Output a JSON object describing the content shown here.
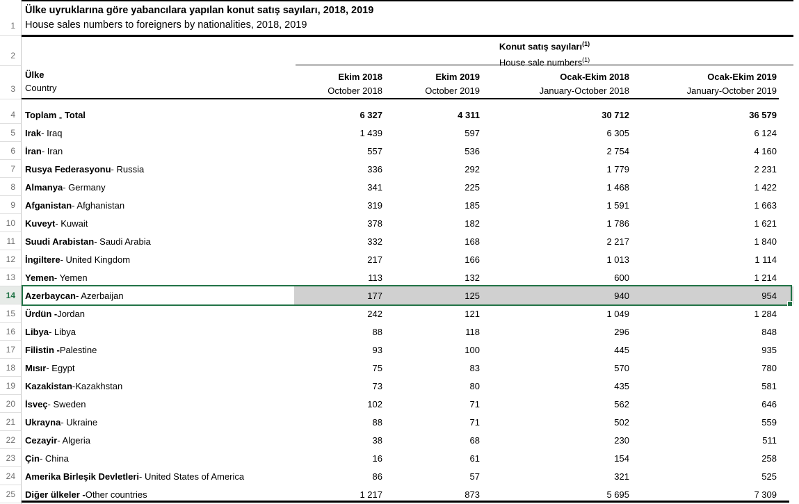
{
  "title": {
    "tr": "Ülke uyruklarına göre yabancılara yapılan konut satış sayıları, 2018, 2019",
    "en": "House sales numbers to foreigners by nationalities, 2018, 2019"
  },
  "group_header": {
    "tr": "Konut satış sayıları",
    "en": "House sale numbers",
    "footnote_marker": "(1)"
  },
  "row_header_col": {
    "tr": "Ülke",
    "en": "Country"
  },
  "columns": [
    {
      "tr": "Ekim 2018",
      "en": "October 2018"
    },
    {
      "tr": "Ekim 2019",
      "en": "October 2019"
    },
    {
      "tr": "Ocak-Ekim 2018",
      "en": "January-October 2018"
    },
    {
      "tr": "Ocak-Ekim 2019",
      "en": "January-October 2019"
    }
  ],
  "gutter_numbers": [
    "1",
    "2",
    "3",
    "4",
    "5",
    "6",
    "7",
    "8",
    "9",
    "10",
    "11",
    "12",
    "13",
    "14",
    "15",
    "16",
    "17",
    "18",
    "19",
    "20",
    "21",
    "22",
    "23",
    "24",
    "25"
  ],
  "selection": {
    "selected_row_number": "14",
    "border_color": "#217346",
    "fill_color": "#d0d0d0",
    "header_bg": "#e7ebe8"
  },
  "colors": {
    "rule_black": "#000000",
    "gutter_text": "#707070",
    "gutter_line": "#c9c9c9"
  },
  "rows": [
    {
      "n": "4",
      "tr": "Toplam",
      "sep": "-",
      "sep_low": true,
      "en": "Total",
      "values": [
        "6 327",
        "4 311",
        "30 712",
        "36 579"
      ],
      "bold": true,
      "selected": false
    },
    {
      "n": "5",
      "tr": "Irak",
      "en": "- Iraq",
      "values": [
        "1 439",
        "597",
        "6 305",
        "6 124"
      ],
      "bold": false,
      "selected": false
    },
    {
      "n": "6",
      "tr": "İran",
      "en": "- Iran",
      "values": [
        "557",
        "536",
        "2 754",
        "4 160"
      ],
      "bold": false,
      "selected": false
    },
    {
      "n": "7",
      "tr": "Rusya Federasyonu",
      "en": "- Russia",
      "values": [
        "336",
        "292",
        "1 779",
        "2 231"
      ],
      "bold": false,
      "selected": false
    },
    {
      "n": "8",
      "tr": "Almanya",
      "en": "- Germany",
      "values": [
        "341",
        "225",
        "1 468",
        "1 422"
      ],
      "bold": false,
      "selected": false
    },
    {
      "n": "9",
      "tr": "Afganistan",
      "en": "- Afghanistan",
      "values": [
        "319",
        "185",
        "1 591",
        "1 663"
      ],
      "bold": false,
      "selected": false
    },
    {
      "n": "10",
      "tr": "Kuveyt",
      "en": "- Kuwait",
      "values": [
        "378",
        "182",
        "1 786",
        "1 621"
      ],
      "bold": false,
      "selected": false
    },
    {
      "n": "11",
      "tr": "Suudi Arabistan",
      "en": "- Saudi Arabia",
      "values": [
        "332",
        "168",
        "2 217",
        "1 840"
      ],
      "bold": false,
      "selected": false
    },
    {
      "n": "12",
      "tr": "İngiltere",
      "en": "- United Kingdom",
      "values": [
        "217",
        "166",
        "1 013",
        "1 114"
      ],
      "bold": false,
      "selected": false
    },
    {
      "n": "13",
      "tr": "Yemen",
      "en": "- Yemen",
      "values": [
        "113",
        "132",
        "600",
        "1 214"
      ],
      "bold": false,
      "selected": false
    },
    {
      "n": "14",
      "tr": "Azerbaycan",
      "en": "- Azerbaijan",
      "values": [
        "177",
        "125",
        "940",
        "954"
      ],
      "bold": false,
      "selected": true
    },
    {
      "n": "15",
      "tr": "Ürdün -",
      "en": "Jordan",
      "values": [
        "242",
        "121",
        "1 049",
        "1 284"
      ],
      "bold": false,
      "selected": false
    },
    {
      "n": "16",
      "tr": "Libya",
      "en": "- Libya",
      "values": [
        "88",
        "118",
        "296",
        "848"
      ],
      "bold": false,
      "selected": false
    },
    {
      "n": "17",
      "tr": "Filistin -",
      "en": "Palestine",
      "values": [
        "93",
        "100",
        "445",
        "935"
      ],
      "bold": false,
      "selected": false
    },
    {
      "n": "18",
      "tr": "Mısır",
      "en": "- Egypt",
      "values": [
        "75",
        "83",
        "570",
        "780"
      ],
      "bold": false,
      "selected": false
    },
    {
      "n": "19",
      "tr": "Kazakistan",
      "en": "-Kazakhstan",
      "values": [
        "73",
        "80",
        "435",
        "581"
      ],
      "bold": false,
      "selected": false
    },
    {
      "n": "20",
      "tr": "İsveç",
      "en": "- Sweden",
      "values": [
        "102",
        "71",
        "562",
        "646"
      ],
      "bold": false,
      "selected": false
    },
    {
      "n": "21",
      "tr": "Ukrayna",
      "en": "- Ukraine",
      "values": [
        "88",
        "71",
        "502",
        "559"
      ],
      "bold": false,
      "selected": false
    },
    {
      "n": "22",
      "tr": "Cezayir",
      "en": "- Algeria",
      "values": [
        "38",
        "68",
        "230",
        "511"
      ],
      "bold": false,
      "selected": false
    },
    {
      "n": "23",
      "tr": "Çin",
      "en": "- China",
      "values": [
        "16",
        "61",
        "154",
        "258"
      ],
      "bold": false,
      "selected": false
    },
    {
      "n": "24",
      "tr": "Amerika Birleşik Devletleri",
      "en": "- United States of America",
      "values": [
        "86",
        "57",
        "321",
        "525"
      ],
      "bold": false,
      "selected": false
    },
    {
      "n": "25",
      "tr": "Diğer ülkeler -",
      "en": "Other countries",
      "values": [
        "1 217",
        "873",
        "5 695",
        "7 309"
      ],
      "bold": false,
      "selected": false
    }
  ]
}
